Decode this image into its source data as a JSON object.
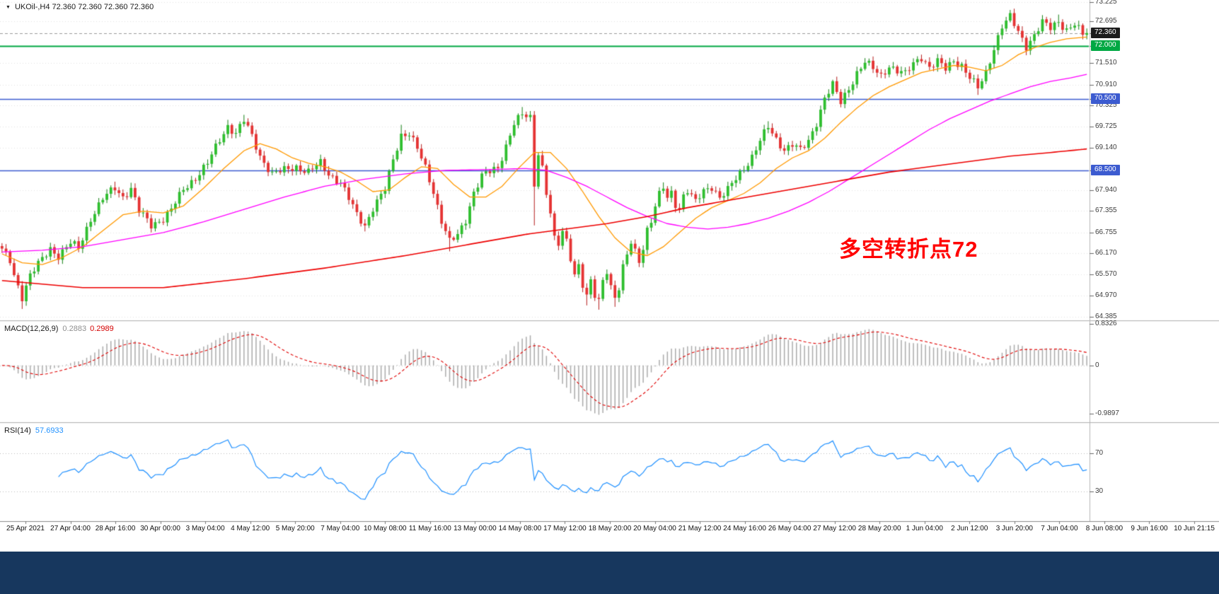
{
  "chart": {
    "title_marker": "▼",
    "title": "UKOil-,H4 72.360 72.360 72.360 72.360",
    "annotation": {
      "text": "多空转折点72",
      "color": "#ff0000"
    },
    "price_axis": {
      "ticks": [
        "73.225",
        "72.695",
        "71.510",
        "70.910",
        "70.325",
        "69.725",
        "69.140",
        "67.940",
        "67.355",
        "66.755",
        "66.170",
        "65.570",
        "64.970",
        "64.385"
      ],
      "tags": [
        {
          "value": 72.36,
          "label": "72.360",
          "bg": "#1c1c1c"
        },
        {
          "value": 72.0,
          "label": "72.000",
          "bg": "#00a843"
        },
        {
          "value": 70.5,
          "label": "70.500",
          "bg": "#3c5bd0"
        },
        {
          "value": 68.5,
          "label": "68.500",
          "bg": "#3c5bd0"
        }
      ]
    }
  },
  "chart_data": {
    "type": "candlestick",
    "symbol": "UKOil-",
    "timeframe": "H4",
    "last_price": 72.36,
    "bars": 270,
    "price_range": [
      64.3,
      73.29
    ],
    "hlines": [
      {
        "value": 72.0,
        "color": "#00a843",
        "width": 2
      },
      {
        "value": 70.5,
        "color": "#3c5bd0",
        "width": 1.3
      },
      {
        "value": 68.5,
        "color": "#3c5bd0",
        "width": 1.3
      }
    ],
    "up_color": "#2fbf2f",
    "down_color": "#e53333",
    "close_anchors": [
      [
        0,
        66.25
      ],
      [
        2,
        65.95
      ],
      [
        3,
        65.55
      ],
      [
        5,
        64.95
      ],
      [
        7,
        65.55
      ],
      [
        9,
        65.85
      ],
      [
        12,
        66.3
      ],
      [
        14,
        66.1
      ],
      [
        17,
        66.45
      ],
      [
        19,
        66.3
      ],
      [
        22,
        67.15
      ],
      [
        25,
        67.7
      ],
      [
        28,
        68.0
      ],
      [
        30,
        67.75
      ],
      [
        32,
        68.0
      ],
      [
        34,
        67.35
      ],
      [
        37,
        66.95
      ],
      [
        40,
        67.15
      ],
      [
        42,
        67.4
      ],
      [
        45,
        67.95
      ],
      [
        48,
        68.3
      ],
      [
        51,
        68.7
      ],
      [
        54,
        69.35
      ],
      [
        56,
        69.75
      ],
      [
        58,
        69.55
      ],
      [
        60,
        69.9
      ],
      [
        62,
        69.45
      ],
      [
        64,
        68.9
      ],
      [
        67,
        68.4
      ],
      [
        70,
        68.5
      ],
      [
        73,
        68.6
      ],
      [
        76,
        68.45
      ],
      [
        79,
        68.7
      ],
      [
        81,
        68.4
      ],
      [
        84,
        68.15
      ],
      [
        86,
        67.7
      ],
      [
        88,
        67.25
      ],
      [
        90,
        66.95
      ],
      [
        92,
        67.45
      ],
      [
        95,
        67.95
      ],
      [
        97,
        68.8
      ],
      [
        99,
        69.5
      ],
      [
        101,
        69.55
      ],
      [
        103,
        69.1
      ],
      [
        105,
        68.55
      ],
      [
        107,
        67.9
      ],
      [
        109,
        67.1
      ],
      [
        111,
        66.5
      ],
      [
        113,
        66.65
      ],
      [
        115,
        67.1
      ],
      [
        117,
        67.9
      ],
      [
        119,
        68.35
      ],
      [
        121,
        68.45
      ],
      [
        123,
        68.55
      ],
      [
        125,
        69.2
      ],
      [
        127,
        69.85
      ],
      [
        129,
        70.05
      ],
      [
        131,
        69.95
      ],
      [
        132,
        68.1
      ],
      [
        133,
        69.0
      ],
      [
        134,
        68.6
      ],
      [
        135,
        67.9
      ],
      [
        136,
        67.3
      ],
      [
        137,
        66.55
      ],
      [
        138,
        66.4
      ],
      [
        139,
        66.75
      ],
      [
        140,
        66.5
      ],
      [
        141,
        66.05
      ],
      [
        142,
        65.6
      ],
      [
        143,
        65.85
      ],
      [
        144,
        65.3
      ],
      [
        145,
        64.95
      ],
      [
        146,
        65.35
      ],
      [
        147,
        64.95
      ],
      [
        148,
        64.8
      ],
      [
        149,
        65.4
      ],
      [
        150,
        65.7
      ],
      [
        151,
        65.25
      ],
      [
        152,
        64.95
      ],
      [
        153,
        65.2
      ],
      [
        154,
        65.75
      ],
      [
        155,
        66.1
      ],
      [
        156,
        66.45
      ],
      [
        157,
        66.2
      ],
      [
        158,
        65.95
      ],
      [
        159,
        66.35
      ],
      [
        160,
        66.85
      ],
      [
        161,
        67.1
      ],
      [
        162,
        67.5
      ],
      [
        163,
        67.8
      ],
      [
        164,
        68.0
      ],
      [
        165,
        67.7
      ],
      [
        166,
        67.85
      ],
      [
        167,
        67.55
      ],
      [
        168,
        67.45
      ],
      [
        169,
        67.8
      ],
      [
        170,
        67.95
      ],
      [
        172,
        67.6
      ],
      [
        174,
        67.9
      ],
      [
        176,
        68.05
      ],
      [
        178,
        67.75
      ],
      [
        180,
        67.95
      ],
      [
        182,
        68.25
      ],
      [
        184,
        68.55
      ],
      [
        186,
        68.9
      ],
      [
        188,
        69.35
      ],
      [
        190,
        69.7
      ],
      [
        192,
        69.35
      ],
      [
        194,
        69.1
      ],
      [
        196,
        69.25
      ],
      [
        198,
        69.05
      ],
      [
        200,
        69.3
      ],
      [
        202,
        69.85
      ],
      [
        204,
        70.55
      ],
      [
        206,
        70.9
      ],
      [
        208,
        70.4
      ],
      [
        210,
        70.8
      ],
      [
        212,
        71.25
      ],
      [
        214,
        71.55
      ],
      [
        216,
        71.35
      ],
      [
        218,
        71.15
      ],
      [
        220,
        71.45
      ],
      [
        222,
        71.3
      ],
      [
        224,
        71.2
      ],
      [
        226,
        71.5
      ],
      [
        228,
        71.7
      ],
      [
        230,
        71.4
      ],
      [
        232,
        71.55
      ],
      [
        234,
        71.35
      ],
      [
        236,
        71.6
      ],
      [
        238,
        71.45
      ],
      [
        240,
        71.1
      ],
      [
        242,
        70.8
      ],
      [
        244,
        71.25
      ],
      [
        246,
        71.95
      ],
      [
        248,
        72.55
      ],
      [
        250,
        72.8
      ],
      [
        252,
        72.4
      ],
      [
        254,
        72.0
      ],
      [
        256,
        72.3
      ],
      [
        258,
        72.65
      ],
      [
        260,
        72.5
      ],
      [
        262,
        72.7
      ],
      [
        264,
        72.45
      ],
      [
        266,
        72.6
      ],
      [
        268,
        72.3
      ],
      [
        269,
        72.36
      ]
    ],
    "spikes": [
      [
        5,
        "low",
        64.6
      ],
      [
        28,
        "high",
        68.18
      ],
      [
        32,
        "high",
        68.15
      ],
      [
        56,
        "high",
        69.92
      ],
      [
        60,
        "high",
        70.06
      ],
      [
        79,
        "high",
        68.86
      ],
      [
        90,
        "low",
        66.78
      ],
      [
        99,
        "high",
        69.78
      ],
      [
        111,
        "low",
        66.22
      ],
      [
        129,
        "high",
        70.28
      ],
      [
        132,
        "low",
        66.95
      ],
      [
        145,
        "low",
        64.7
      ],
      [
        148,
        "low",
        64.58
      ],
      [
        152,
        "low",
        64.66
      ],
      [
        164,
        "high",
        68.16
      ],
      [
        190,
        "high",
        69.88
      ],
      [
        206,
        "high",
        71.02
      ],
      [
        242,
        "low",
        70.62
      ],
      [
        250,
        "high",
        72.97
      ],
      [
        254,
        "low",
        71.78
      ],
      [
        262,
        "high",
        72.88
      ]
    ],
    "moving_averages": [
      {
        "name": "ma-fast-orange",
        "color": "#ff9900",
        "width": 1.3,
        "anchors": [
          [
            0,
            66.15
          ],
          [
            5,
            65.9
          ],
          [
            10,
            65.85
          ],
          [
            15,
            66.05
          ],
          [
            20,
            66.35
          ],
          [
            25,
            66.8
          ],
          [
            30,
            67.25
          ],
          [
            35,
            67.35
          ],
          [
            40,
            67.3
          ],
          [
            45,
            67.5
          ],
          [
            50,
            68.0
          ],
          [
            55,
            68.55
          ],
          [
            60,
            69.05
          ],
          [
            64,
            69.25
          ],
          [
            68,
            69.1
          ],
          [
            72,
            68.85
          ],
          [
            76,
            68.7
          ],
          [
            80,
            68.6
          ],
          [
            84,
            68.45
          ],
          [
            88,
            68.2
          ],
          [
            92,
            67.9
          ],
          [
            96,
            67.95
          ],
          [
            100,
            68.3
          ],
          [
            104,
            68.6
          ],
          [
            108,
            68.55
          ],
          [
            112,
            68.1
          ],
          [
            116,
            67.75
          ],
          [
            120,
            67.75
          ],
          [
            124,
            68.05
          ],
          [
            128,
            68.55
          ],
          [
            132,
            69.0
          ],
          [
            136,
            69.0
          ],
          [
            140,
            68.55
          ],
          [
            144,
            67.9
          ],
          [
            148,
            67.2
          ],
          [
            152,
            66.6
          ],
          [
            156,
            66.2
          ],
          [
            160,
            66.1
          ],
          [
            164,
            66.35
          ],
          [
            168,
            66.75
          ],
          [
            172,
            67.15
          ],
          [
            176,
            67.45
          ],
          [
            180,
            67.65
          ],
          [
            184,
            67.85
          ],
          [
            188,
            68.15
          ],
          [
            192,
            68.55
          ],
          [
            196,
            68.85
          ],
          [
            200,
            69.05
          ],
          [
            204,
            69.4
          ],
          [
            208,
            69.85
          ],
          [
            212,
            70.25
          ],
          [
            216,
            70.6
          ],
          [
            220,
            70.85
          ],
          [
            224,
            71.05
          ],
          [
            228,
            71.25
          ],
          [
            232,
            71.35
          ],
          [
            236,
            71.45
          ],
          [
            240,
            71.4
          ],
          [
            244,
            71.3
          ],
          [
            248,
            71.45
          ],
          [
            252,
            71.75
          ],
          [
            256,
            71.95
          ],
          [
            260,
            72.1
          ],
          [
            264,
            72.2
          ],
          [
            269,
            72.25
          ]
        ]
      },
      {
        "name": "ma-mid-magenta",
        "color": "#ff00ff",
        "width": 1.3,
        "anchors": [
          [
            0,
            66.2
          ],
          [
            10,
            66.25
          ],
          [
            20,
            66.35
          ],
          [
            30,
            66.55
          ],
          [
            40,
            66.75
          ],
          [
            50,
            67.05
          ],
          [
            60,
            67.4
          ],
          [
            70,
            67.75
          ],
          [
            80,
            68.05
          ],
          [
            90,
            68.25
          ],
          [
            100,
            68.4
          ],
          [
            110,
            68.5
          ],
          [
            120,
            68.52
          ],
          [
            130,
            68.55
          ],
          [
            135,
            68.5
          ],
          [
            140,
            68.3
          ],
          [
            145,
            68.05
          ],
          [
            150,
            67.75
          ],
          [
            155,
            67.45
          ],
          [
            160,
            67.2
          ],
          [
            165,
            67.0
          ],
          [
            170,
            66.9
          ],
          [
            175,
            66.85
          ],
          [
            180,
            66.9
          ],
          [
            185,
            67.0
          ],
          [
            190,
            67.15
          ],
          [
            195,
            67.35
          ],
          [
            200,
            67.6
          ],
          [
            205,
            67.9
          ],
          [
            210,
            68.25
          ],
          [
            215,
            68.6
          ],
          [
            220,
            68.95
          ],
          [
            225,
            69.3
          ],
          [
            230,
            69.65
          ],
          [
            235,
            69.95
          ],
          [
            240,
            70.2
          ],
          [
            245,
            70.45
          ],
          [
            250,
            70.65
          ],
          [
            255,
            70.85
          ],
          [
            260,
            71.0
          ],
          [
            265,
            71.1
          ],
          [
            269,
            71.2
          ]
        ]
      },
      {
        "name": "ma-slow-red",
        "color": "#ee0000",
        "width": 1.6,
        "anchors": [
          [
            0,
            65.4
          ],
          [
            20,
            65.2
          ],
          [
            40,
            65.2
          ],
          [
            60,
            65.45
          ],
          [
            80,
            65.75
          ],
          [
            100,
            66.1
          ],
          [
            110,
            66.3
          ],
          [
            120,
            66.5
          ],
          [
            130,
            66.7
          ],
          [
            140,
            66.85
          ],
          [
            150,
            67.0
          ],
          [
            160,
            67.2
          ],
          [
            170,
            67.45
          ],
          [
            180,
            67.65
          ],
          [
            190,
            67.85
          ],
          [
            200,
            68.05
          ],
          [
            210,
            68.25
          ],
          [
            220,
            68.45
          ],
          [
            230,
            68.6
          ],
          [
            240,
            68.75
          ],
          [
            250,
            68.9
          ],
          [
            260,
            69.0
          ],
          [
            269,
            69.1
          ]
        ]
      }
    ]
  },
  "macd": {
    "label": "MACD(12,26,9)",
    "value_main": "0.2883",
    "value_signal": "0.2989",
    "fast": 12,
    "slow": 26,
    "signal": 9,
    "axis_top": "0.8326",
    "axis_zero": "0",
    "axis_bottom": "-0.9897",
    "hist_color": "#ababab",
    "signal_color": "#e00000"
  },
  "rsi": {
    "label": "RSI(14)",
    "value": "57.6933",
    "period": 14,
    "levels": [
      70,
      30
    ],
    "color": "#1e90ff"
  },
  "time_axis": {
    "labels": [
      "25 Apr 2021",
      "27 Apr 04:00",
      "28 Apr 16:00",
      "30 Apr 00:00",
      "3 May 04:00",
      "4 May 12:00",
      "5 May 20:00",
      "7 May 04:00",
      "10 May 08:00",
      "11 May 16:00",
      "13 May 00:00",
      "14 May 08:00",
      "17 May 12:00",
      "18 May 20:00",
      "20 May 04:00",
      "21 May 12:00",
      "24 May 16:00",
      "26 May 04:00",
      "27 May 12:00",
      "28 May 20:00",
      "1 Jun 04:00",
      "2 Jun 12:00",
      "3 Jun 20:00",
      "7 Jun 04:00",
      "8 Jun 08:00",
      "9 Jun 16:00",
      "10 Jun 21:15"
    ]
  }
}
